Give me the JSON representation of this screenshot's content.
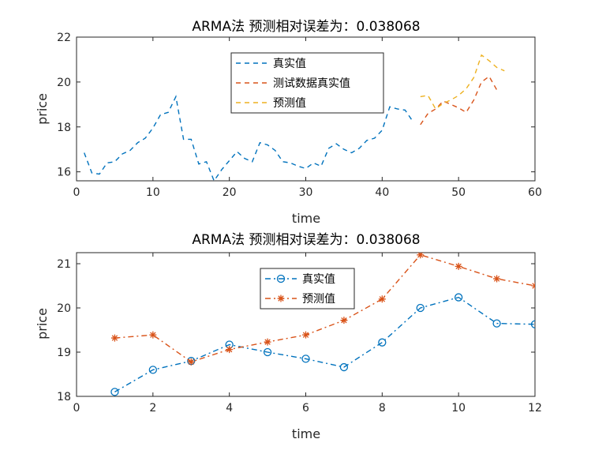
{
  "chart_data": [
    {
      "type": "line",
      "title": "ARMA法  预测相对误差为：0.038068",
      "xlabel": "time",
      "ylabel": "price",
      "xlim": [
        0,
        60
      ],
      "ylim": [
        15.6,
        22
      ],
      "xticks": [
        0,
        10,
        20,
        30,
        40,
        50,
        60
      ],
      "yticks": [
        16,
        18,
        20,
        22
      ],
      "legend_position": "top-center",
      "series": [
        {
          "name": "真实值",
          "color": "#0072BD",
          "style": "dashed",
          "x": [
            1,
            2,
            3,
            4,
            5,
            6,
            7,
            8,
            9,
            10,
            11,
            12,
            13,
            14,
            15,
            16,
            17,
            18,
            19,
            20,
            21,
            22,
            23,
            24,
            25,
            26,
            27,
            28,
            29,
            30,
            31,
            32,
            33,
            34,
            35,
            36,
            37,
            38,
            39,
            40,
            41,
            42,
            43,
            44
          ],
          "y": [
            16.85,
            15.95,
            15.9,
            16.4,
            16.45,
            16.8,
            16.95,
            17.3,
            17.5,
            17.95,
            18.55,
            18.65,
            19.35,
            17.45,
            17.45,
            16.35,
            16.45,
            15.6,
            16.1,
            16.5,
            16.9,
            16.6,
            16.45,
            17.3,
            17.2,
            16.95,
            16.45,
            16.4,
            16.25,
            16.15,
            16.4,
            16.25,
            17.05,
            17.25,
            17.0,
            16.85,
            17.05,
            17.4,
            17.5,
            17.85,
            18.9,
            18.8,
            18.75,
            18.25
          ]
        },
        {
          "name": "测试数据真实值",
          "color": "#D95319",
          "style": "dashed",
          "x": [
            45,
            46,
            47,
            48,
            49,
            50,
            51,
            52,
            53,
            54,
            55
          ],
          "y": [
            18.1,
            18.6,
            18.8,
            19.15,
            19.0,
            18.85,
            18.65,
            19.2,
            20.0,
            20.25,
            19.65
          ]
        },
        {
          "name": "预测值",
          "color": "#EDB120",
          "style": "dashed",
          "x": [
            45,
            46,
            47,
            48,
            49,
            50,
            51,
            52,
            53,
            54,
            55,
            56
          ],
          "y": [
            19.35,
            19.4,
            18.8,
            19.05,
            19.2,
            19.4,
            19.7,
            20.2,
            21.2,
            20.95,
            20.65,
            20.5
          ]
        }
      ]
    },
    {
      "type": "line",
      "title": "ARMA法  预测相对误差为：0.038068",
      "xlabel": "time",
      "ylabel": "price",
      "xlim": [
        0,
        12
      ],
      "ylim": [
        18,
        21.25
      ],
      "xticks": [
        0,
        2,
        4,
        6,
        8,
        10,
        12
      ],
      "yticks": [
        18,
        19,
        20,
        21
      ],
      "legend_position": "top-center",
      "series": [
        {
          "name": "真实值",
          "color": "#0072BD",
          "style": "dash-dot",
          "marker": "circle",
          "x": [
            1,
            2,
            3,
            4,
            5,
            6,
            7,
            8,
            9,
            10,
            11,
            12
          ],
          "y": [
            18.1,
            18.6,
            18.8,
            19.17,
            19.0,
            18.85,
            18.66,
            19.22,
            20.0,
            20.24,
            19.65,
            19.63
          ]
        },
        {
          "name": "预测值",
          "color": "#D95319",
          "style": "dash-dot",
          "marker": "star",
          "x": [
            1,
            2,
            3,
            4,
            5,
            6,
            7,
            8,
            9,
            10,
            11,
            12
          ],
          "y": [
            19.32,
            19.39,
            18.78,
            19.06,
            19.23,
            19.39,
            19.72,
            20.2,
            21.2,
            20.94,
            20.66,
            20.5
          ]
        }
      ]
    }
  ]
}
